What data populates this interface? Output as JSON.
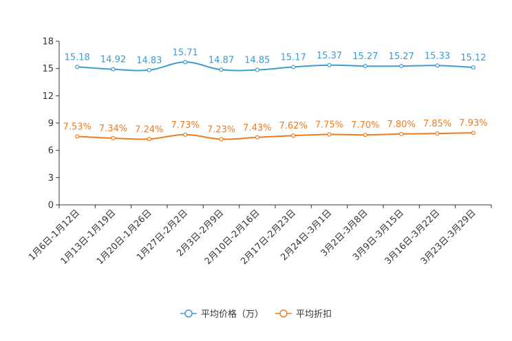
{
  "chart_data": {
    "type": "line",
    "categories": [
      "1月6日-1月12日",
      "1月13日-1月19日",
      "1月20日-1月26日",
      "1月27日-2月2日",
      "2月3日-2月9日",
      "2月10日-2月16日",
      "2月17日-2月23日",
      "2月24日-3月1日",
      "3月2日-3月8日",
      "3月9日-3月15日",
      "3月16日-3月22日",
      "3月23日-3月29日"
    ],
    "series": [
      {
        "name": "平均价格（万）",
        "color": "#3a9bd0",
        "values": [
          15.18,
          14.92,
          14.83,
          15.71,
          14.87,
          14.85,
          15.17,
          15.37,
          15.27,
          15.27,
          15.33,
          15.12
        ],
        "labels": [
          "15.18",
          "14.92",
          "14.83",
          "15.71",
          "14.87",
          "14.85",
          "15.17",
          "15.37",
          "15.27",
          "15.27",
          "15.33",
          "15.12"
        ]
      },
      {
        "name": "平均折扣",
        "color": "#f07b1c",
        "values": [
          7.53,
          7.34,
          7.24,
          7.73,
          7.23,
          7.43,
          7.62,
          7.75,
          7.7,
          7.8,
          7.85,
          7.93
        ],
        "labels": [
          "7.53%",
          "7.34%",
          "7.24%",
          "7.73%",
          "7.23%",
          "7.43%",
          "7.62%",
          "7.75%",
          "7.70%",
          "7.80%",
          "7.85%",
          "7.93%"
        ]
      }
    ],
    "yticks": [
      "0",
      "3",
      "6",
      "9",
      "12",
      "15",
      "18"
    ],
    "ylim": [
      0,
      18
    ],
    "title": "",
    "xlabel": "",
    "ylabel": "",
    "legend": "bottom-center"
  }
}
